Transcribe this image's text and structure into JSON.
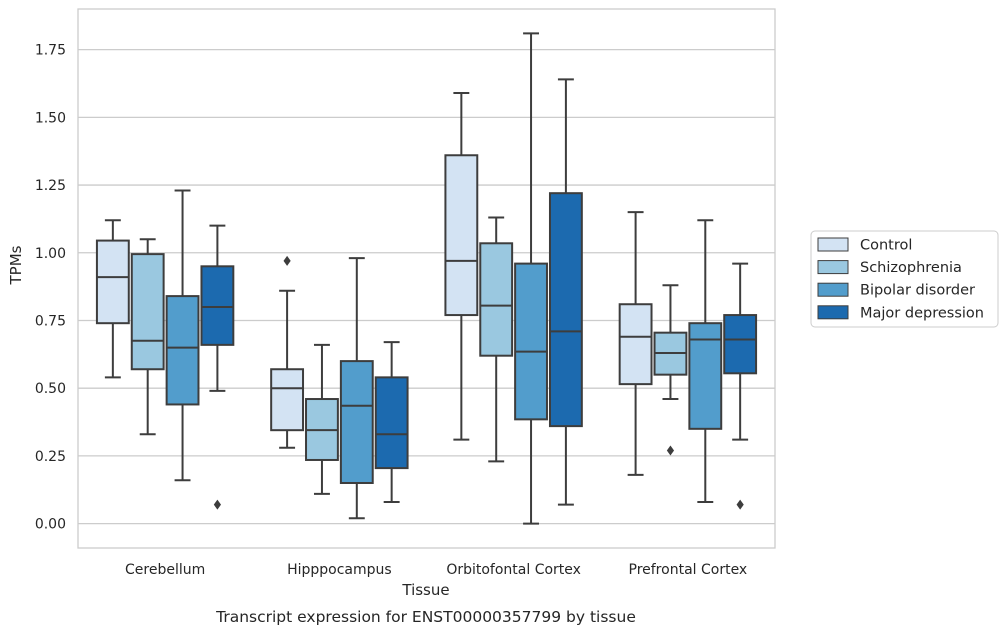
{
  "chart_data": {
    "type": "boxplot",
    "xlabel": "Tissue",
    "ylabel": "TPMs",
    "caption": "Transcript expression for ENST00000357799 by tissue",
    "ylim": [
      -0.09,
      1.9
    ],
    "yticks": [
      0.0,
      0.25,
      0.5,
      0.75,
      1.0,
      1.25,
      1.5,
      1.75
    ],
    "ytick_labels": [
      "0.00",
      "0.25",
      "0.50",
      "0.75",
      "1.00",
      "1.25",
      "1.50",
      "1.75"
    ],
    "grid": "horizontal",
    "legend_position": "right",
    "categories": [
      "Cerebellum",
      "Hipppocampus",
      "Orbitofontal Cortex",
      "Prefrontal Cortex"
    ],
    "series": [
      {
        "name": "Control",
        "color": "#d3e3f3",
        "boxes": [
          {
            "whislo": 0.54,
            "q1": 0.74,
            "med": 0.91,
            "q3": 1.045,
            "whishi": 1.12,
            "fliers": []
          },
          {
            "whislo": 0.28,
            "q1": 0.345,
            "med": 0.5,
            "q3": 0.57,
            "whishi": 0.86,
            "fliers": [
              0.97
            ]
          },
          {
            "whislo": 0.31,
            "q1": 0.77,
            "med": 0.97,
            "q3": 1.36,
            "whishi": 1.59,
            "fliers": []
          },
          {
            "whislo": 0.18,
            "q1": 0.515,
            "med": 0.69,
            "q3": 0.81,
            "whishi": 1.15,
            "fliers": []
          }
        ]
      },
      {
        "name": "Schizophrenia",
        "color": "#9ac8e0",
        "boxes": [
          {
            "whislo": 0.33,
            "q1": 0.57,
            "med": 0.675,
            "q3": 0.995,
            "whishi": 1.05,
            "fliers": []
          },
          {
            "whislo": 0.11,
            "q1": 0.235,
            "med": 0.345,
            "q3": 0.46,
            "whishi": 0.66,
            "fliers": []
          },
          {
            "whislo": 0.23,
            "q1": 0.62,
            "med": 0.805,
            "q3": 1.035,
            "whishi": 1.13,
            "fliers": []
          },
          {
            "whislo": 0.46,
            "q1": 0.55,
            "med": 0.63,
            "q3": 0.705,
            "whishi": 0.88,
            "fliers": [
              0.27
            ]
          }
        ]
      },
      {
        "name": "Bipolar disorder",
        "color": "#529dcc",
        "boxes": [
          {
            "whislo": 0.16,
            "q1": 0.44,
            "med": 0.65,
            "q3": 0.84,
            "whishi": 1.23,
            "fliers": []
          },
          {
            "whislo": 0.02,
            "q1": 0.15,
            "med": 0.435,
            "q3": 0.6,
            "whishi": 0.98,
            "fliers": []
          },
          {
            "whislo": 0.0,
            "q1": 0.385,
            "med": 0.635,
            "q3": 0.96,
            "whishi": 1.81,
            "fliers": []
          },
          {
            "whislo": 0.08,
            "q1": 0.35,
            "med": 0.68,
            "q3": 0.74,
            "whishi": 1.12,
            "fliers": []
          }
        ]
      },
      {
        "name": "Major depression",
        "color": "#1c6aaf",
        "boxes": [
          {
            "whislo": 0.49,
            "q1": 0.66,
            "med": 0.8,
            "q3": 0.95,
            "whishi": 1.1,
            "fliers": [
              0.07
            ]
          },
          {
            "whislo": 0.08,
            "q1": 0.205,
            "med": 0.33,
            "q3": 0.54,
            "whishi": 0.67,
            "fliers": []
          },
          {
            "whislo": 0.07,
            "q1": 0.36,
            "med": 0.71,
            "q3": 1.22,
            "whishi": 1.64,
            "fliers": []
          },
          {
            "whislo": 0.31,
            "q1": 0.555,
            "med": 0.68,
            "q3": 0.77,
            "whishi": 0.96,
            "fliers": [
              0.07
            ]
          }
        ]
      }
    ]
  }
}
